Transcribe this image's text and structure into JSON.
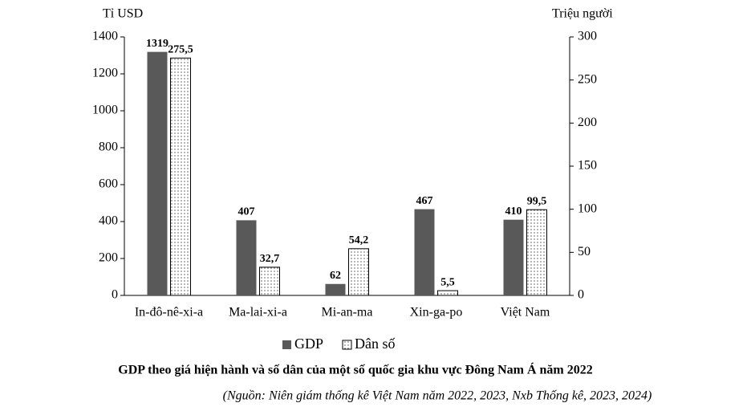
{
  "chart_data": {
    "type": "bar",
    "title": "GDP theo giá hiện hành và số dân của một số quốc gia khu vực Đông Nam Á năm 2022",
    "subtitle": "(Nguồn: Niên giám thống kê Việt Nam năm 2022, 2023, Nxb Thống kê, 2023, 2024)",
    "y_label": "Tỉ USD",
    "y2_label": "Triệu người",
    "categories": [
      "In-đô-nê-xi-a",
      "Ma-lai-xi-a",
      "Mi-an-ma",
      "Xin-ga-po",
      "Việt Nam"
    ],
    "series": [
      {
        "name": "GDP",
        "color": "#595959",
        "values": [
          1319,
          407,
          62,
          467,
          410
        ]
      },
      {
        "name": "Dân số",
        "color": "#ffffff",
        "axis": "y2",
        "values": [
          275.5,
          32.7,
          54.2,
          5.5,
          99.5
        ],
        "value_labels": [
          "275,5",
          "32,7",
          "54,2",
          "5,5",
          "99,5"
        ]
      }
    ],
    "ylim": [
      0,
      1400
    ],
    "yticks": [
      0,
      200,
      400,
      600,
      800,
      1000,
      1200,
      1400
    ],
    "y2lim": [
      0,
      300
    ],
    "y2ticks": [
      0,
      50,
      100,
      150,
      200,
      250,
      300
    ],
    "legend": "bottom"
  }
}
